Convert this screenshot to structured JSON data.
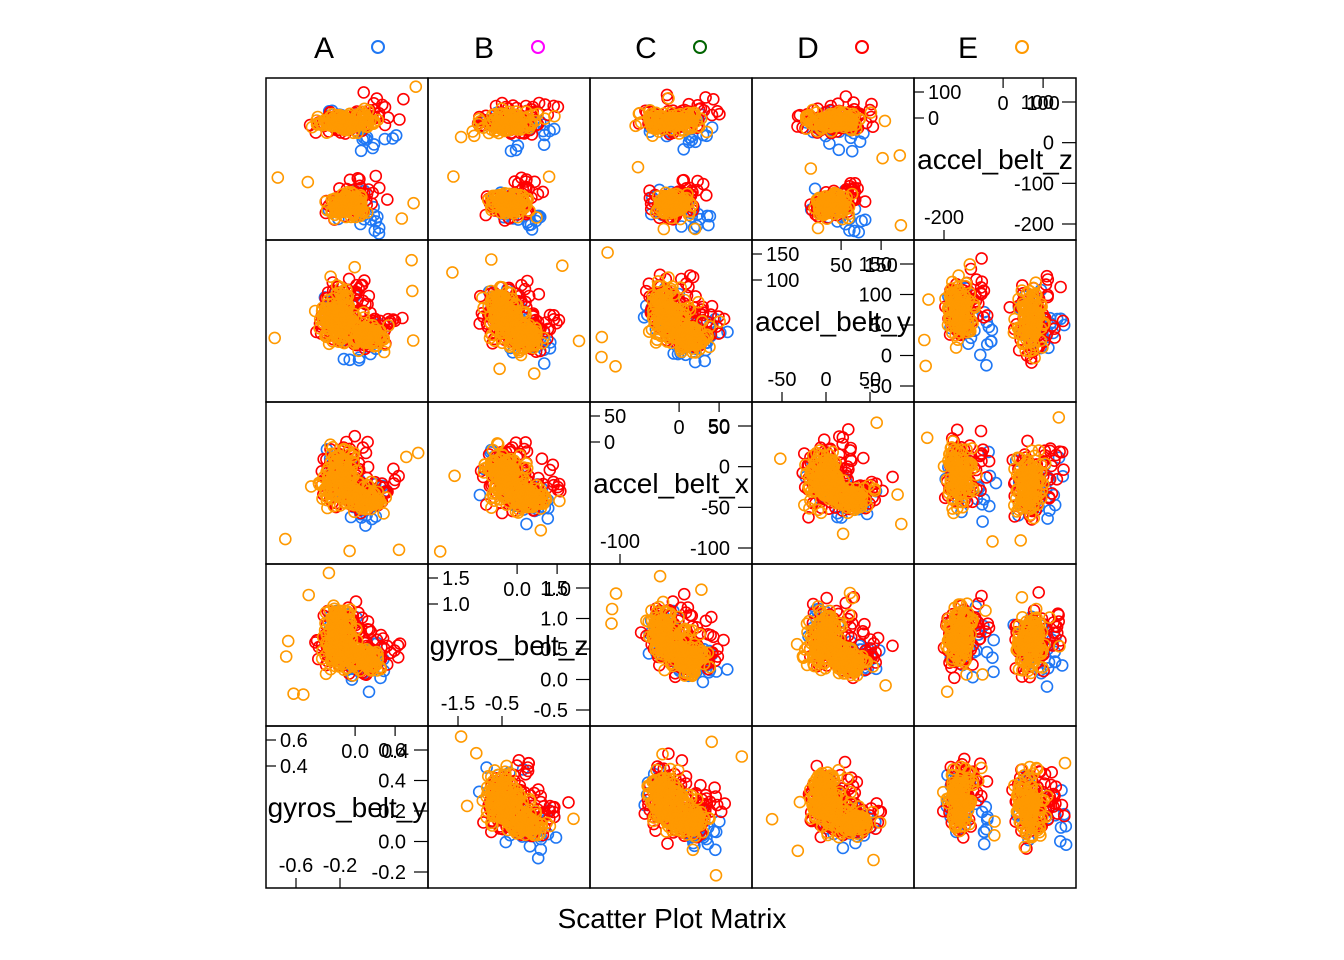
{
  "chart_data": {
    "type": "scatter",
    "subtype": "scatter-plot-matrix",
    "title": "Scatter Plot Matrix",
    "legend": [
      {
        "name": "A",
        "color": "#1f77f4"
      },
      {
        "name": "B",
        "color": "#ff00ff"
      },
      {
        "name": "C",
        "color": "#006400"
      },
      {
        "name": "D",
        "color": "#ff0000"
      },
      {
        "name": "E",
        "color": "#ff9900"
      }
    ],
    "variables": [
      {
        "name": "gyros_belt_y",
        "range": [
          -0.7,
          0.7
        ],
        "ticks_low": [
          "-0.6",
          "-0.4",
          "-0.2",
          "0.0"
        ],
        "ticks_high": [
          "0.0",
          "0.2",
          "0.4",
          "0.6"
        ],
        "bottom_ticks": [
          "-0.6",
          "-0.2"
        ],
        "top_ticks": [
          "0.0",
          "0.4"
        ]
      },
      {
        "name": "gyros_belt_z",
        "range": [
          -1.7,
          1.7
        ],
        "ticks_low": [
          "-1.5",
          "-1.0",
          "-0.5",
          "0.0"
        ],
        "ticks_high": [
          "0.0",
          "0.5",
          "1.0",
          "1.5"
        ],
        "bottom_ticks": [
          "-1.5",
          "-0.5"
        ],
        "top_ticks": [
          "0.0",
          "1.0"
        ]
      },
      {
        "name": "accel_belt_x",
        "range": [
          -130,
          100
        ],
        "ticks_low": [
          "-100",
          "-50",
          "0"
        ],
        "ticks_high": [
          "0",
          "50"
        ],
        "bottom_ticks": [
          "-100"
        ],
        "top_ticks": [
          "0",
          "50"
        ]
      },
      {
        "name": "accel_belt_y",
        "range": [
          -80,
          180
        ],
        "ticks_low": [
          "-50",
          "0",
          "50"
        ],
        "ticks_high": [
          "50",
          "100",
          "150"
        ],
        "bottom_ticks": [
          "-50",
          "0",
          "50"
        ],
        "top_ticks": [
          "50",
          "150"
        ]
      },
      {
        "name": "accel_belt_z",
        "range": [
          -290,
          170
        ],
        "ticks_low": [
          "-200",
          "-100",
          "0"
        ],
        "ticks_high": [
          "0",
          "100"
        ],
        "bottom_ticks": [
          "-200"
        ],
        "top_ticks": [
          "0",
          "100"
        ]
      }
    ],
    "panels_description": "5x5 lower/upper scatter matrix of belt sensor readings for classes A-E; class E (orange) plotted on top, D (red) prominent at extremes, A (blue) visible at edges"
  }
}
